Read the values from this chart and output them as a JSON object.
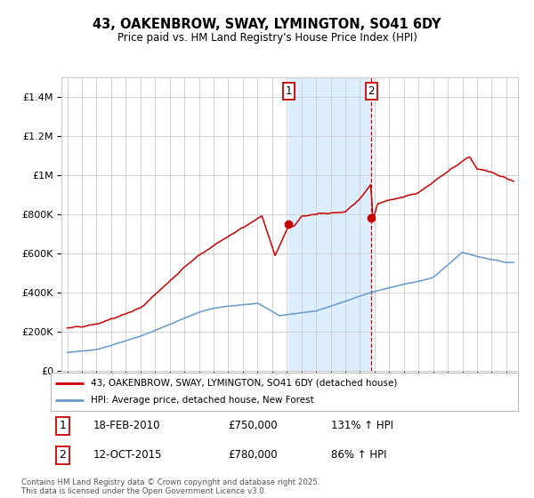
{
  "title": "43, OAKENBROW, SWAY, LYMINGTON, SO41 6DY",
  "subtitle": "Price paid vs. HM Land Registry's House Price Index (HPI)",
  "legend_line1": "43, OAKENBROW, SWAY, LYMINGTON, SO41 6DY (detached house)",
  "legend_line2": "HPI: Average price, detached house, New Forest",
  "annotation1_date": "18-FEB-2010",
  "annotation1_price": "£750,000",
  "annotation1_hpi": "131% ↑ HPI",
  "annotation2_date": "12-OCT-2015",
  "annotation2_price": "£780,000",
  "annotation2_hpi": "86% ↑ HPI",
  "footer": "Contains HM Land Registry data © Crown copyright and database right 2025.\nThis data is licensed under the Open Government Licence v3.0.",
  "red_color": "#cc0000",
  "blue_color": "#6699cc",
  "shade_color": "#ddeeff",
  "grid_color": "#cccccc",
  "bg_color": "#ffffff",
  "ann_box_color": "#cc0000"
}
